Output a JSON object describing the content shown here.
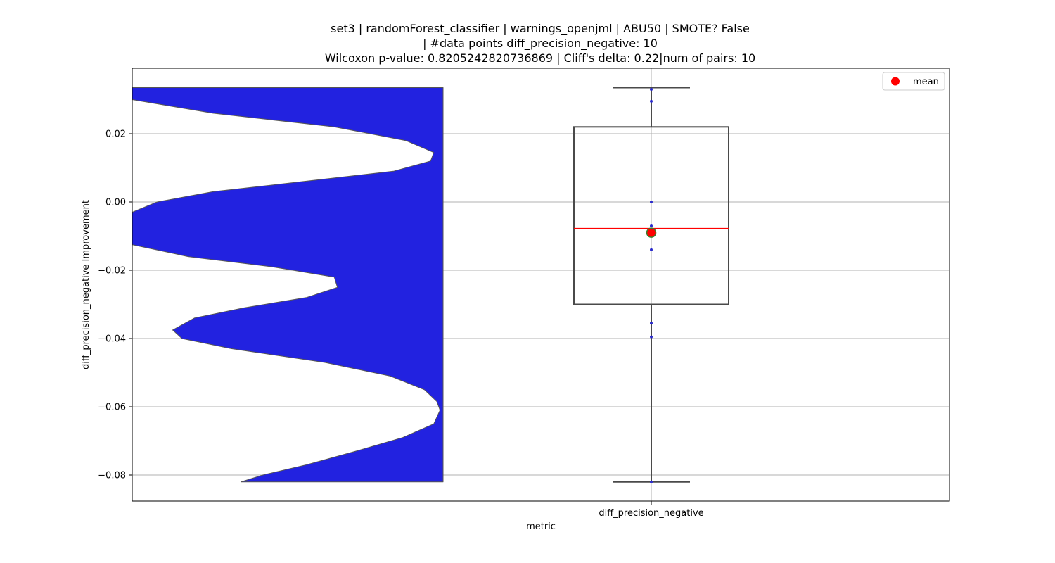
{
  "chart_data": {
    "type": "violin+box",
    "title_lines": [
      "set3 | randomForest_classifier | warnings_openjml | ABU50 | SMOTE? False",
      "| #data points diff_precision_negative: 10",
      "Wilcoxon p-value: 0.8205242820736869 | Cliff's delta: 0.22|num of pairs: 10"
    ],
    "xlabel": "metric",
    "ylabel": "diff_precision_negative Improvement",
    "categories": [
      "diff_precision_negative"
    ],
    "y_ticks": [
      {
        "value": 0.02,
        "label": "0.02"
      },
      {
        "value": 0.0,
        "label": "0.00"
      },
      {
        "value": -0.02,
        "label": "−0.02"
      },
      {
        "value": -0.04,
        "label": "−0.04"
      },
      {
        "value": -0.06,
        "label": "−0.06"
      },
      {
        "value": -0.08,
        "label": "−0.08"
      }
    ],
    "ylim": [
      -0.0875,
      0.039
    ],
    "grid": true,
    "legend": {
      "position": "top-right",
      "entries": [
        {
          "label": "mean",
          "color": "#ff0000"
        }
      ]
    },
    "box": {
      "whisker_low": -0.082,
      "q1": -0.03,
      "median": -0.0078,
      "q3": 0.022,
      "whisker_high": 0.0335,
      "mean": -0.009
    },
    "points": [
      0.033,
      0.0295,
      0.0,
      -0.007,
      -0.014,
      -0.0355,
      -0.0395,
      -0.082
    ],
    "violin_profile": [
      [
        0.0335,
        1.0
      ],
      [
        0.03,
        1.0
      ],
      [
        0.026,
        0.74
      ],
      [
        0.022,
        0.35
      ],
      [
        0.018,
        0.12
      ],
      [
        0.0145,
        0.03
      ],
      [
        0.012,
        0.04
      ],
      [
        0.009,
        0.16
      ],
      [
        0.006,
        0.45
      ],
      [
        0.003,
        0.74
      ],
      [
        0.0,
        0.92
      ],
      [
        -0.003,
        1.0
      ],
      [
        -0.007,
        1.0
      ],
      [
        -0.0125,
        1.0
      ],
      [
        -0.016,
        0.82
      ],
      [
        -0.019,
        0.55
      ],
      [
        -0.022,
        0.35
      ],
      [
        -0.025,
        0.34
      ],
      [
        -0.028,
        0.44
      ],
      [
        -0.031,
        0.64
      ],
      [
        -0.034,
        0.8
      ],
      [
        -0.0375,
        0.87
      ],
      [
        -0.04,
        0.84
      ],
      [
        -0.043,
        0.68
      ],
      [
        -0.047,
        0.38
      ],
      [
        -0.051,
        0.17
      ],
      [
        -0.055,
        0.06
      ],
      [
        -0.0585,
        0.02
      ],
      [
        -0.061,
        0.01
      ],
      [
        -0.065,
        0.03
      ],
      [
        -0.069,
        0.13
      ],
      [
        -0.073,
        0.28
      ],
      [
        -0.077,
        0.44
      ],
      [
        -0.08,
        0.58
      ],
      [
        -0.082,
        0.65
      ]
    ],
    "colors": {
      "violin": "#2222e0",
      "median": "#ff0000",
      "mean_fill": "#ff0000",
      "mean_edge": "#3a7d2a",
      "points": "#2a2acc",
      "box_edge": "#4a4a4a",
      "grid": "#b0b0b0"
    }
  }
}
